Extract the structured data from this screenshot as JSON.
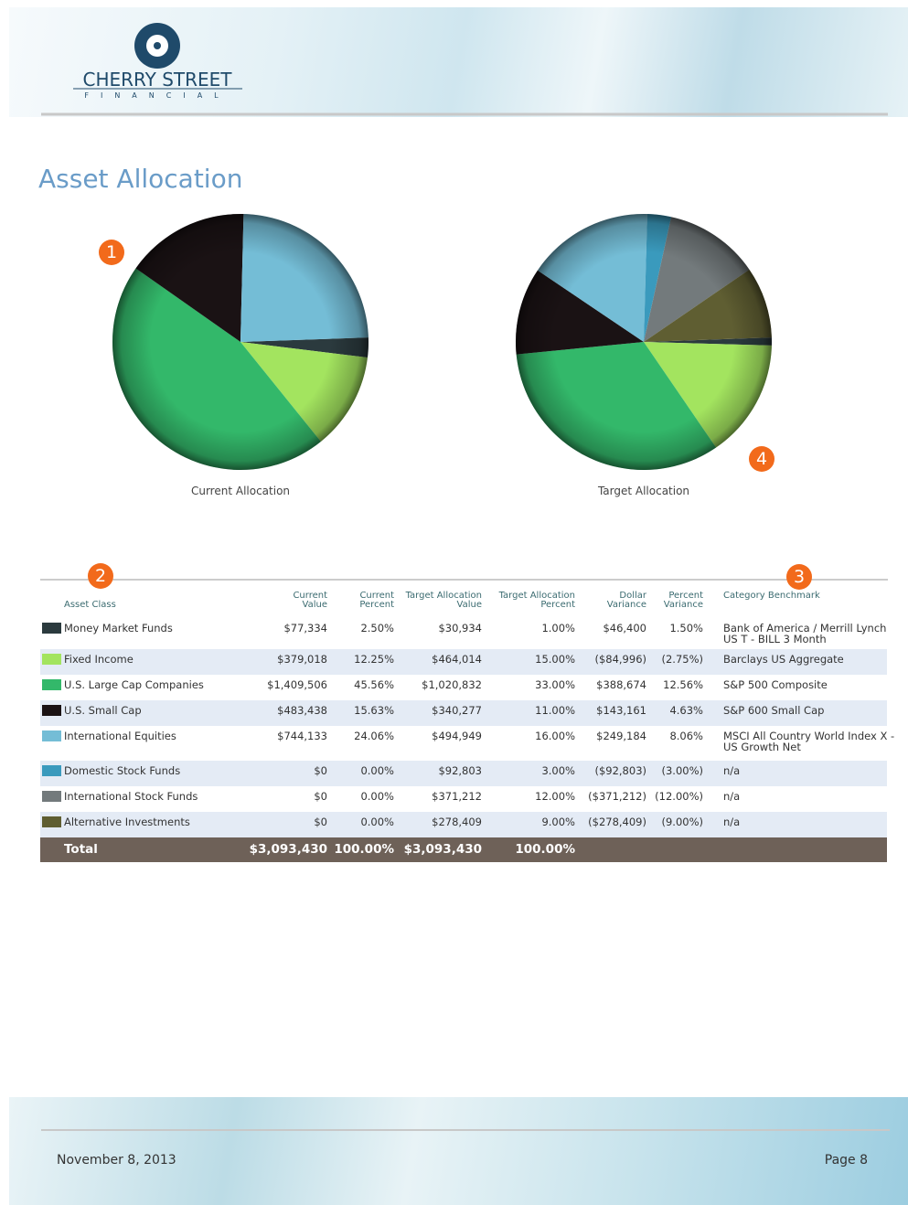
{
  "header": {
    "logo_name": "CHERRY STREET",
    "logo_sub": "FINANCIAL"
  },
  "title": "Asset Allocation",
  "chart_data": [
    {
      "type": "pie",
      "label": "Current Allocation",
      "values": [
        2.5,
        12.25,
        45.56,
        15.63,
        24.06,
        0,
        0,
        0
      ],
      "colors": [
        "#2b3a3e",
        "#a3e45f",
        "#33b86a",
        "#1a1214",
        "#74bdd6",
        "#3a9abd",
        "#737a7c",
        "#5f5e32"
      ]
    },
    {
      "type": "pie",
      "label": "Target Allocation",
      "values": [
        1,
        15,
        33,
        11,
        16,
        3,
        12,
        9
      ],
      "colors": [
        "#2b3a3e",
        "#a3e45f",
        "#33b86a",
        "#1a1214",
        "#74bdd6",
        "#3a9abd",
        "#737a7c",
        "#5f5e32"
      ]
    }
  ],
  "markers": [
    "1",
    "2",
    "3",
    "4"
  ],
  "table": {
    "columns": [
      "Asset Class",
      "Current\nValue",
      "Current\nPercent",
      "Target Allocation\nValue",
      "Target Allocation\nPercent",
      "Dollar\nVariance",
      "Percent\nVariance",
      "Category Benchmark"
    ],
    "rows": [
      [
        "Money Market Funds",
        "$77,334",
        "2.50%",
        "$30,934",
        "1.00%",
        "$46,400",
        "1.50%",
        "Bank of America / Merrill Lynch\nUS T - BILL 3 Month"
      ],
      [
        "Fixed Income",
        "$379,018",
        "12.25%",
        "$464,014",
        "15.00%",
        "($84,996)",
        "(2.75%)",
        "Barclays US Aggregate"
      ],
      [
        "U.S. Large Cap Companies",
        "$1,409,506",
        "45.56%",
        "$1,020,832",
        "33.00%",
        "$388,674",
        "12.56%",
        "S&P 500 Composite"
      ],
      [
        "U.S. Small Cap",
        "$483,438",
        "15.63%",
        "$340,277",
        "11.00%",
        "$143,161",
        "4.63%",
        "S&P 600 Small Cap"
      ],
      [
        "International Equities",
        "$744,133",
        "24.06%",
        "$494,949",
        "16.00%",
        "$249,184",
        "8.06%",
        "MSCI All Country World Index X -\nUS Growth Net"
      ],
      [
        "Domestic Stock Funds",
        "$0",
        "0.00%",
        "$92,803",
        "3.00%",
        "($92,803)",
        "(3.00%)",
        "n/a"
      ],
      [
        "International Stock Funds",
        "$0",
        "0.00%",
        "$371,212",
        "12.00%",
        "($371,212)",
        "(12.00%)",
        "n/a"
      ],
      [
        "Alternative Investments",
        "$0",
        "0.00%",
        "$278,409",
        "9.00%",
        "($278,409)",
        "(9.00%)",
        "n/a"
      ]
    ],
    "total": [
      "Total",
      "$3,093,430",
      "100.00%",
      "$3,093,430",
      "100.00%"
    ]
  },
  "footer": {
    "date": "November 8, 2013",
    "page": "Page 8"
  }
}
